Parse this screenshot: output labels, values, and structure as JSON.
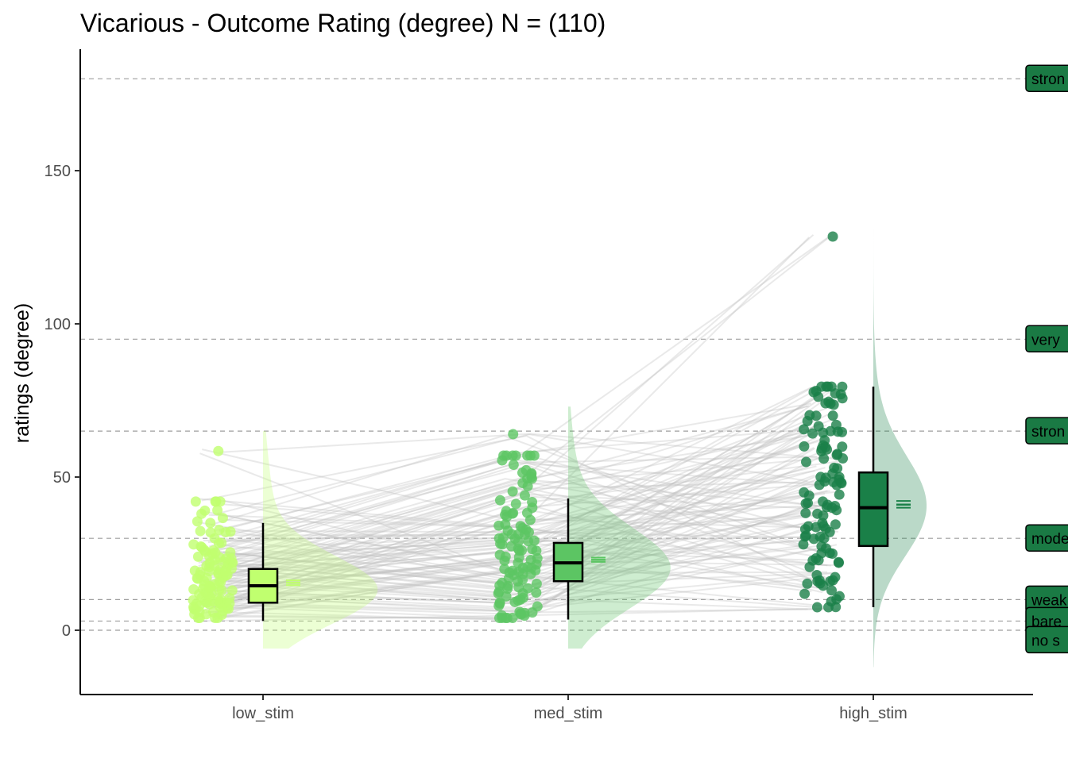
{
  "chart_data": {
    "type": "raincloud",
    "title": "Vicarious - Outcome Rating (degree) N = (110)",
    "xlabel": "",
    "ylabel": "ratings (degree)",
    "ylim": [
      -21,
      189
    ],
    "yticks": [
      0,
      50,
      100,
      150
    ],
    "categories": [
      "low_stim",
      "med_stim",
      "high_stim"
    ],
    "colors": {
      "low_stim": "#c0ff6f",
      "med_stim": "#5cc563",
      "high_stim": "#1a8048",
      "paired_lines": "#bfbfbf",
      "reference_lines": "#9e9e9e",
      "label_fill": "#1a7a44"
    },
    "boxplots": [
      {
        "category": "low_stim",
        "whisker_low": 3,
        "q1": 9,
        "median": 14.5,
        "q3": 20,
        "whisker_high": 35,
        "mean": 15.5,
        "ci": [
          14.7,
          16.3
        ]
      },
      {
        "category": "med_stim",
        "whisker_low": 3.5,
        "q1": 16,
        "median": 22,
        "q3": 28.5,
        "whisker_high": 43,
        "mean": 23,
        "ci": [
          22.3,
          23.7
        ]
      },
      {
        "category": "high_stim",
        "whisker_low": 7.5,
        "q1": 27.5,
        "median": 40,
        "q3": 51.5,
        "whisker_high": 79.5,
        "mean": 41,
        "ci": [
          40,
          42.2
        ]
      }
    ],
    "density_range": [
      {
        "category": "low_stim",
        "min": -6,
        "max": 65,
        "peak_at": 13
      },
      {
        "category": "med_stim",
        "min": -6,
        "max": 73,
        "peak_at": 20
      },
      {
        "category": "high_stim",
        "min": -12,
        "max": 148,
        "peak_at": 40
      }
    ],
    "points": {
      "low_stim": [
        4,
        5,
        6,
        7,
        8,
        9,
        10,
        11,
        12,
        13,
        14,
        15,
        16,
        17,
        18,
        19,
        20,
        21,
        22,
        23,
        24,
        25,
        26,
        28,
        30,
        32,
        35,
        38,
        42,
        58.5
      ],
      "med_stim": [
        4,
        6,
        8,
        10,
        12,
        14,
        16,
        18,
        20,
        22,
        24,
        26,
        28,
        30,
        32,
        34,
        36,
        40,
        44,
        47,
        50,
        54,
        57,
        64
      ],
      "high_stim": [
        7.5,
        13,
        16,
        18,
        22,
        25,
        28,
        30,
        33,
        35,
        38,
        40,
        42,
        45,
        48,
        50,
        53,
        56,
        59,
        62,
        65,
        67,
        70,
        74,
        77,
        79.5,
        128.5
      ]
    },
    "reference_lines": [
      {
        "label": "strongest imaginable",
        "value": 180
      },
      {
        "label": "very strong",
        "value": 95
      },
      {
        "label": "strong",
        "value": 65
      },
      {
        "label": "moderate",
        "value": 30
      },
      {
        "label": "weak",
        "value": 10
      },
      {
        "label": "barely detectable",
        "value": 3
      },
      {
        "label": "no sensation",
        "value": 0
      }
    ],
    "reference_labels_visible": [
      "stron",
      "very",
      "stron",
      "mode",
      "weak",
      "bare",
      "no s"
    ]
  }
}
